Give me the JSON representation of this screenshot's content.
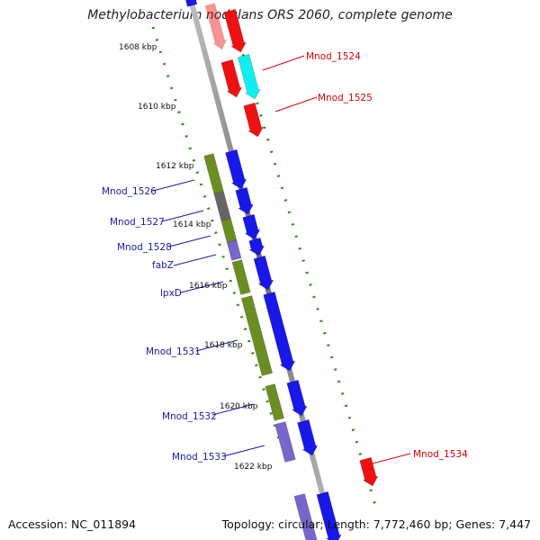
{
  "title": "Methylobacterium nodulans ORS 2060, complete genome",
  "footer": {
    "accession": "Accession: NC_011894",
    "topology": "Topology: circular; Length: 7,772,460 bp; Genes: 7,447"
  },
  "colors": {
    "label_blue": "#1a1aa8",
    "label_red": "#dd0000",
    "backbone": "#8a8a8a",
    "tick": "#2a8a1a",
    "forward_blue": "#1818e8",
    "forward_red": "#ee1111",
    "cyan": "#11eeee",
    "olive": "#6b8e23",
    "gray_gene": "#666666",
    "lavender": "#7766cc"
  },
  "kbp_labels": [
    "1608 kbp",
    "1610 kbp",
    "1612 kbp",
    "1614 kbp",
    "1616 kbp",
    "1618 kbp",
    "1620 kbp",
    "1622 kbp"
  ],
  "gene_labels": {
    "left": [
      "Mnod_1526",
      "Mnod_1527",
      "Mnod_1528",
      "fabZ",
      "lpxD",
      "Mnod_1531",
      "Mnod_1532",
      "Mnod_1533"
    ],
    "right": [
      "Mnod_1524",
      "Mnod_1525",
      "Mnod_1534"
    ]
  }
}
